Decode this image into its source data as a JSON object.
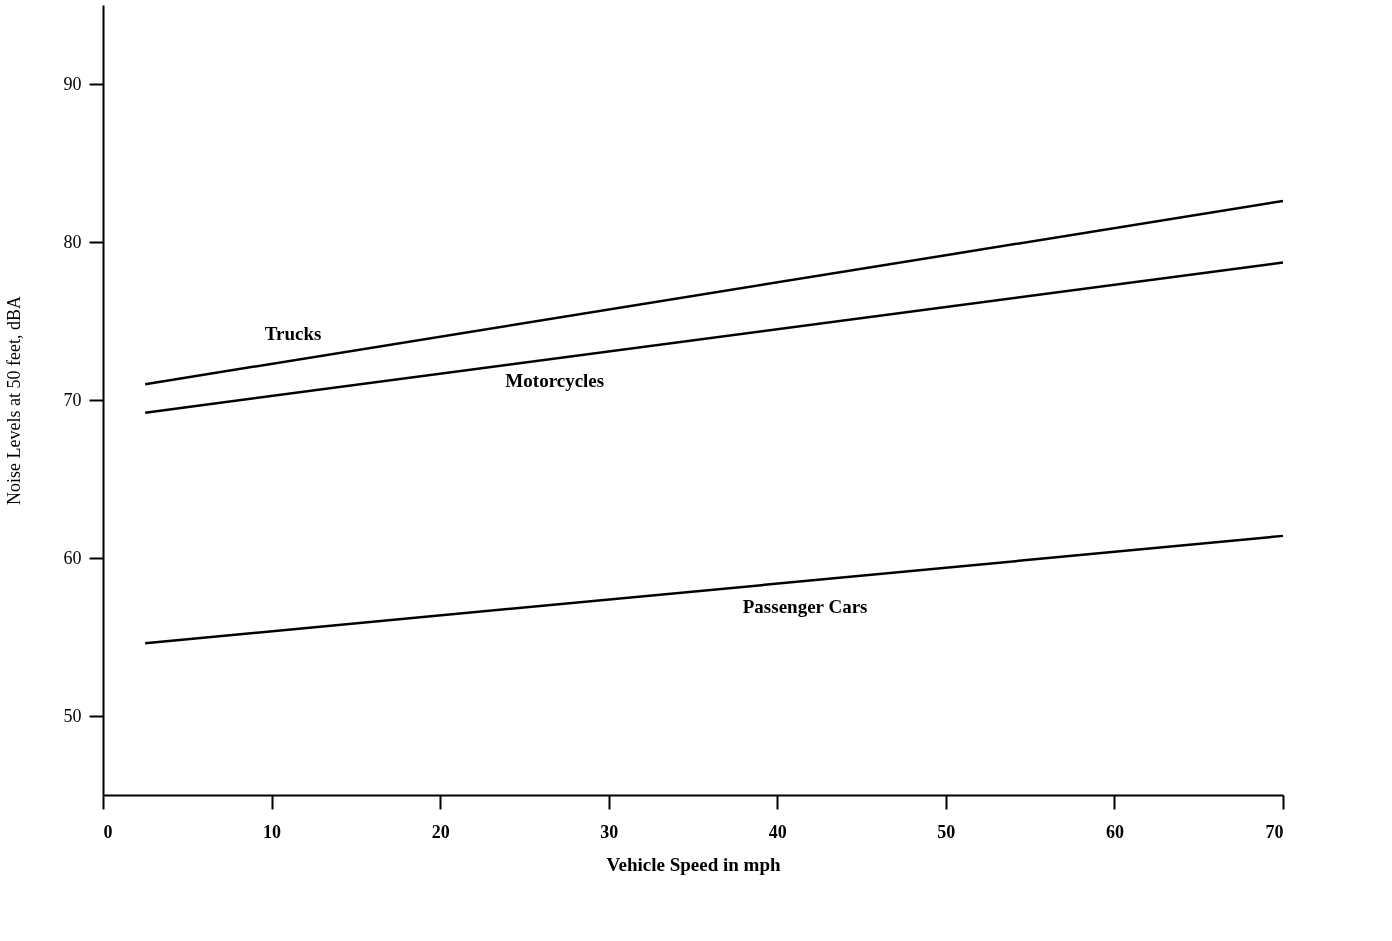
{
  "chart_data": {
    "type": "line",
    "xlabel": "Vehicle Speed in mph",
    "ylabel": "Noise Levels at 50 feet, dBA",
    "xlim": [
      0,
      70
    ],
    "xticks": [
      0,
      10,
      20,
      30,
      40,
      50,
      60,
      70
    ],
    "ylim": [
      45,
      95
    ],
    "yticks": [
      50,
      60,
      70,
      80,
      90
    ],
    "grid": false,
    "legend": false,
    "x": [
      2.5,
      70
    ],
    "series": [
      {
        "name": "Trucks",
        "color": "#000000",
        "values": [
          71.0,
          82.6
        ]
      },
      {
        "name": "Motorcycles",
        "color": "#000000",
        "values": [
          69.2,
          78.7
        ]
      },
      {
        "name": "Passenger Cars",
        "color": "#000000",
        "values": [
          54.6,
          61.4
        ]
      }
    ]
  }
}
